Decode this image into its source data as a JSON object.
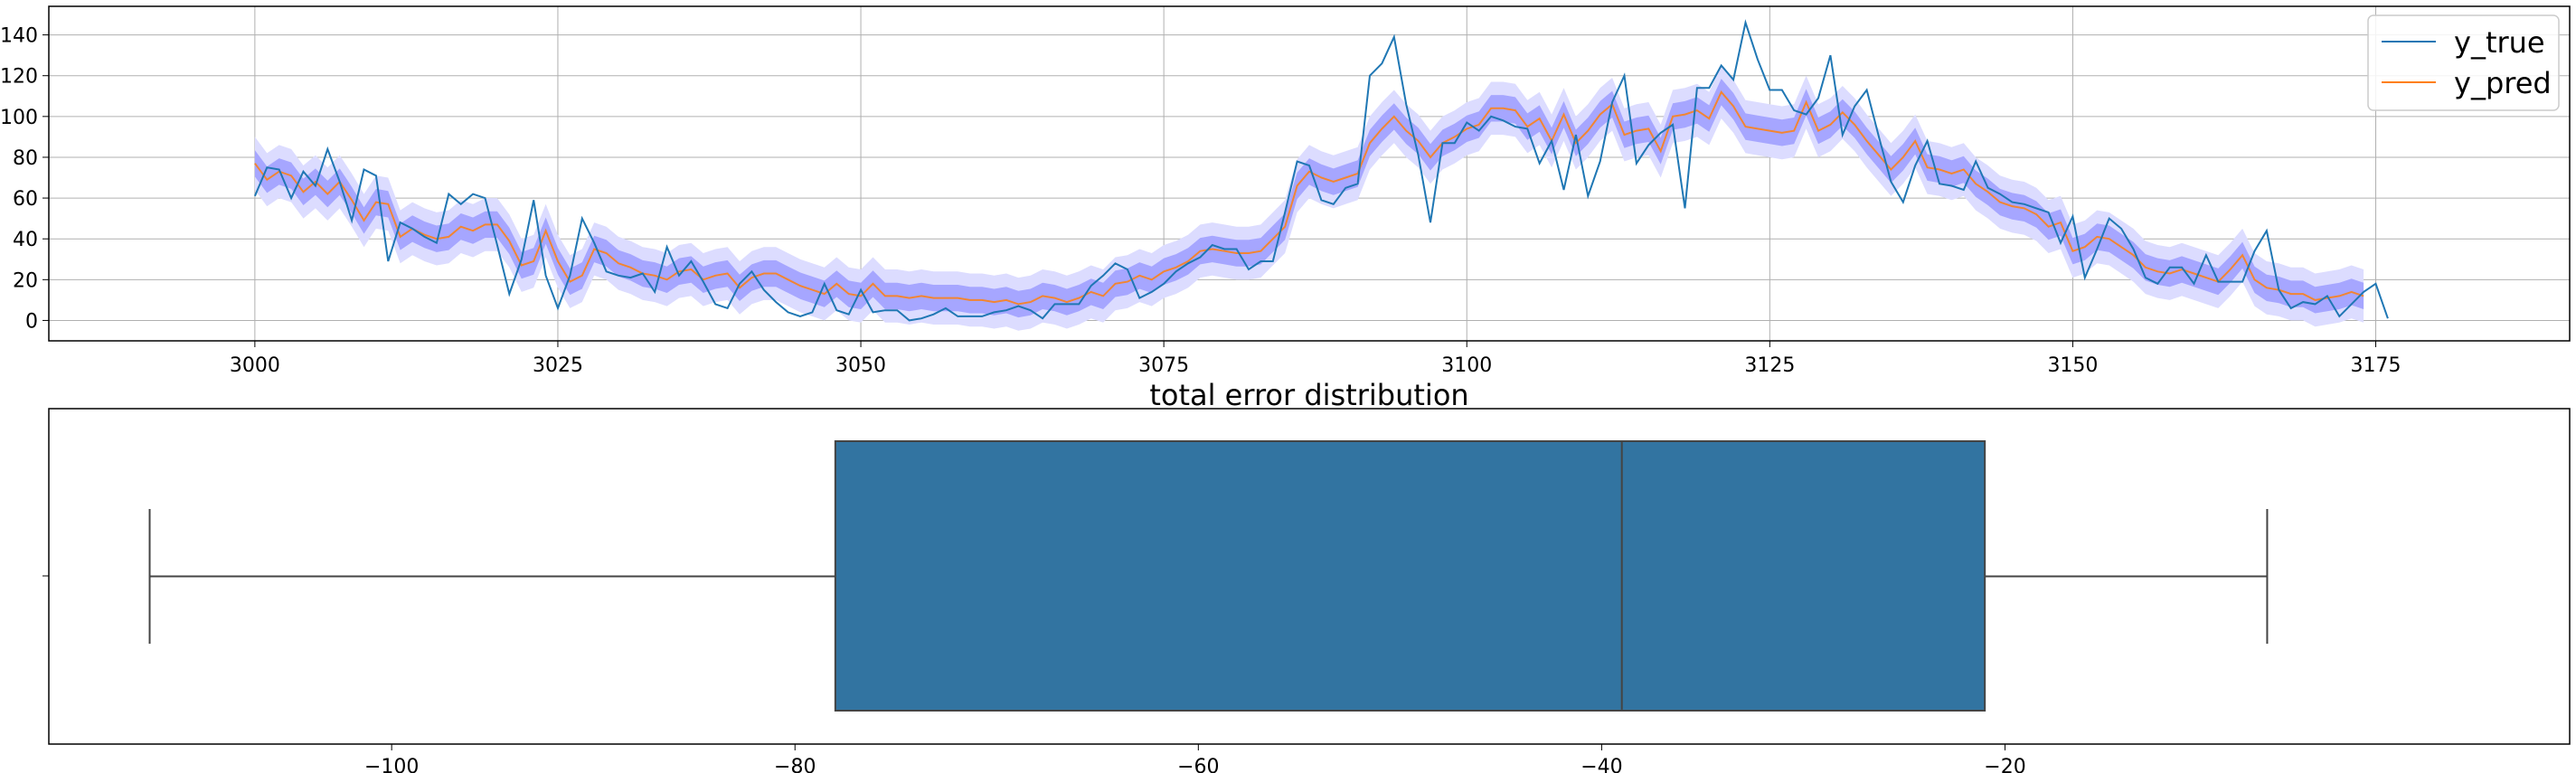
{
  "colors": {
    "y_true": "#1f77b4",
    "y_pred": "#ff7f0e",
    "band_outer": "#dcdcff",
    "band_inner": "#a6a6ff",
    "box_fill": "#3274a1",
    "grid": "#b0b0b0",
    "frame": "#000000"
  },
  "chart_data": [
    {
      "type": "line",
      "title": "",
      "xlabel": "",
      "ylabel": "",
      "xlim": [
        2983,
        3191
      ],
      "ylim": [
        -10,
        154
      ],
      "grid": true,
      "legend": "upper right",
      "x_ticks": [
        3000,
        3025,
        3050,
        3075,
        3100,
        3125,
        3150,
        3175
      ],
      "y_ticks": [
        0,
        20,
        40,
        60,
        80,
        100,
        120,
        140
      ],
      "x_start": 3000,
      "series": [
        {
          "name": "y_true",
          "values": [
            61,
            75,
            74,
            60,
            73,
            66,
            84,
            68,
            49,
            74,
            71,
            29,
            48,
            45,
            41,
            38,
            62,
            57,
            62,
            60,
            37,
            13,
            30,
            59,
            22,
            6,
            22,
            50,
            38,
            24,
            22,
            21,
            23,
            14,
            36,
            22,
            29,
            19,
            8,
            6,
            18,
            24,
            15,
            9,
            4,
            2,
            4,
            18,
            5,
            3,
            15,
            4,
            5,
            5,
            0,
            1,
            3,
            6,
            2,
            2,
            2,
            4,
            5,
            7,
            5,
            1,
            8,
            8,
            8,
            17,
            22,
            28,
            25,
            11,
            14,
            18,
            24,
            28,
            31,
            37,
            35,
            35,
            25,
            29,
            29,
            53,
            78,
            76,
            59,
            57,
            65,
            67,
            120,
            126,
            139,
            106,
            81,
            48,
            87,
            87,
            97,
            93,
            100,
            98,
            95,
            94,
            77,
            88,
            64,
            91,
            61,
            78,
            107,
            120,
            77,
            86,
            92,
            96,
            55,
            114,
            114,
            125,
            118,
            146,
            128,
            113,
            113,
            103,
            101,
            109,
            130,
            91,
            105,
            113,
            90,
            68,
            58,
            76,
            88,
            67,
            66,
            64,
            78,
            65,
            62,
            58,
            57,
            55,
            53,
            38,
            51,
            21,
            35,
            50,
            45,
            35,
            21,
            18,
            26,
            26,
            18,
            32,
            19,
            19,
            19,
            34,
            44,
            15,
            6,
            9,
            8,
            12,
            2,
            8,
            14,
            18,
            1
          ]
        },
        {
          "name": "y_pred",
          "values": [
            77,
            69,
            73,
            71,
            63,
            68,
            62,
            68,
            59,
            49,
            58,
            57,
            41,
            45,
            42,
            40,
            41,
            46,
            44,
            47,
            47,
            39,
            27,
            29,
            44,
            29,
            19,
            22,
            35,
            33,
            28,
            26,
            23,
            22,
            20,
            24,
            25,
            20,
            22,
            23,
            16,
            21,
            23,
            23,
            20,
            17,
            15,
            13,
            18,
            13,
            12,
            18,
            12,
            12,
            11,
            12,
            11,
            11,
            11,
            10,
            10,
            9,
            10,
            8,
            9,
            12,
            11,
            9,
            11,
            14,
            12,
            18,
            19,
            22,
            20,
            24,
            26,
            29,
            34,
            35,
            34,
            33,
            33,
            34,
            40,
            46,
            66,
            73,
            70,
            68,
            70,
            72,
            87,
            94,
            100,
            93,
            88,
            80,
            87,
            90,
            94,
            96,
            104,
            104,
            103,
            95,
            99,
            88,
            101,
            87,
            93,
            101,
            106,
            91,
            93,
            94,
            83,
            100,
            101,
            103,
            99,
            112,
            105,
            95,
            94,
            93,
            92,
            93,
            107,
            93,
            96,
            102,
            96,
            88,
            81,
            74,
            80,
            88,
            75,
            74,
            72,
            74,
            67,
            63,
            58,
            56,
            55,
            52,
            46,
            48,
            34,
            36,
            41,
            40,
            36,
            32,
            26,
            24,
            23,
            25,
            23,
            21,
            19,
            25,
            32,
            20,
            16,
            15,
            13,
            13,
            10,
            11,
            12,
            14,
            12
          ]
        }
      ]
    },
    {
      "type": "box",
      "title": "total error distribution",
      "xlim": [
        -117,
        8
      ],
      "x_ticks": [
        -100,
        -80,
        -60,
        -40,
        -20
      ],
      "x_tick_labels": [
        "−100",
        "−80",
        "−60",
        "−40",
        "−20"
      ],
      "whisker_low": -112,
      "q1": -78,
      "median": -39,
      "q3": -21,
      "whisker_high": -7
    }
  ]
}
